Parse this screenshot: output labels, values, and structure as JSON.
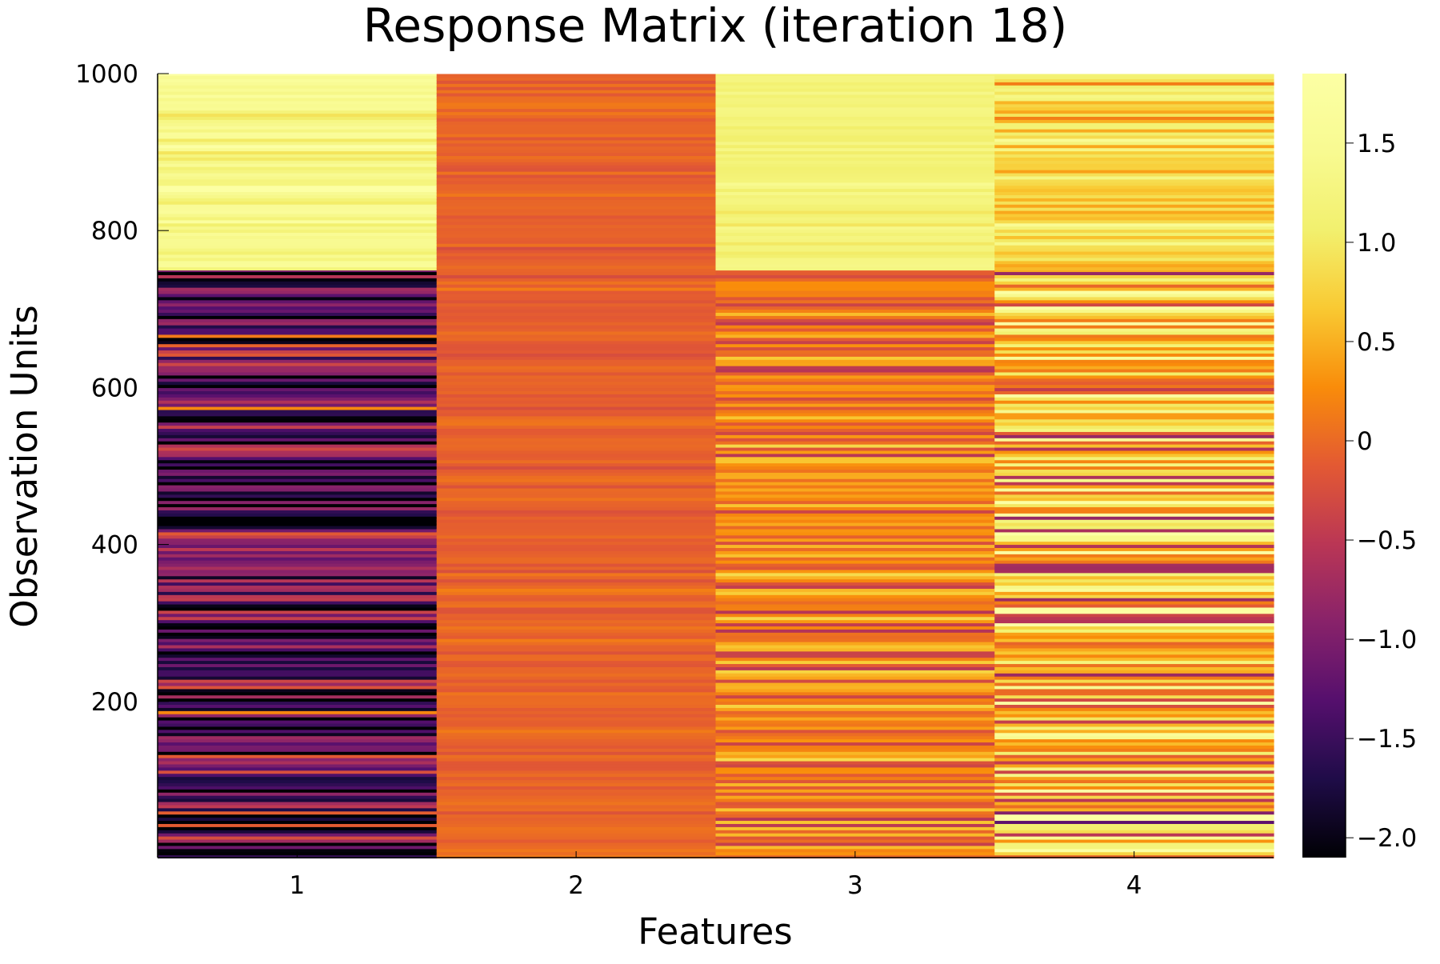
{
  "chart_data": {
    "type": "heatmap",
    "title": "Response Matrix (iteration 18)",
    "xlabel": "Features",
    "ylabel": "Observation Units",
    "categories": [
      "1",
      "2",
      "3",
      "4"
    ],
    "ylim": [
      1,
      1000
    ],
    "y_ticks": [
      200,
      400,
      600,
      800,
      1000
    ],
    "y_tick_labels": [
      "200",
      "400",
      "600",
      "800",
      "1000"
    ],
    "colorbar": {
      "colormap": "inferno",
      "range": [
        -2.1,
        1.85
      ],
      "ticks": [
        -2.0,
        -1.5,
        -1.0,
        -0.5,
        0.0,
        0.5,
        1.0,
        1.5
      ],
      "tick_labels": [
        "−2.0",
        "−1.5",
        "−1.0",
        "−0.5",
        "0",
        "0.5",
        "1.0",
        "1.5"
      ]
    },
    "rows": 1000,
    "segments": [
      {
        "feature": "1",
        "rows": [
          1,
          750
        ],
        "mean": -1.3,
        "spread": 0.9
      },
      {
        "feature": "1",
        "rows": [
          751,
          1000
        ],
        "mean": 1.4,
        "spread": 0.35
      },
      {
        "feature": "2",
        "rows": [
          1,
          1000
        ],
        "mean": -0.05,
        "spread": 0.12
      },
      {
        "feature": "3",
        "rows": [
          1,
          750
        ],
        "mean": 0.15,
        "spread": 0.45
      },
      {
        "feature": "3",
        "rows": [
          751,
          1000
        ],
        "mean": 1.2,
        "spread": 0.15
      },
      {
        "feature": "4",
        "rows": [
          1,
          750
        ],
        "mean": 0.6,
        "spread": 1.0
      },
      {
        "feature": "4",
        "rows": [
          751,
          1000
        ],
        "mean": 0.8,
        "spread": 0.5
      }
    ],
    "grid": false,
    "legend": "none"
  }
}
